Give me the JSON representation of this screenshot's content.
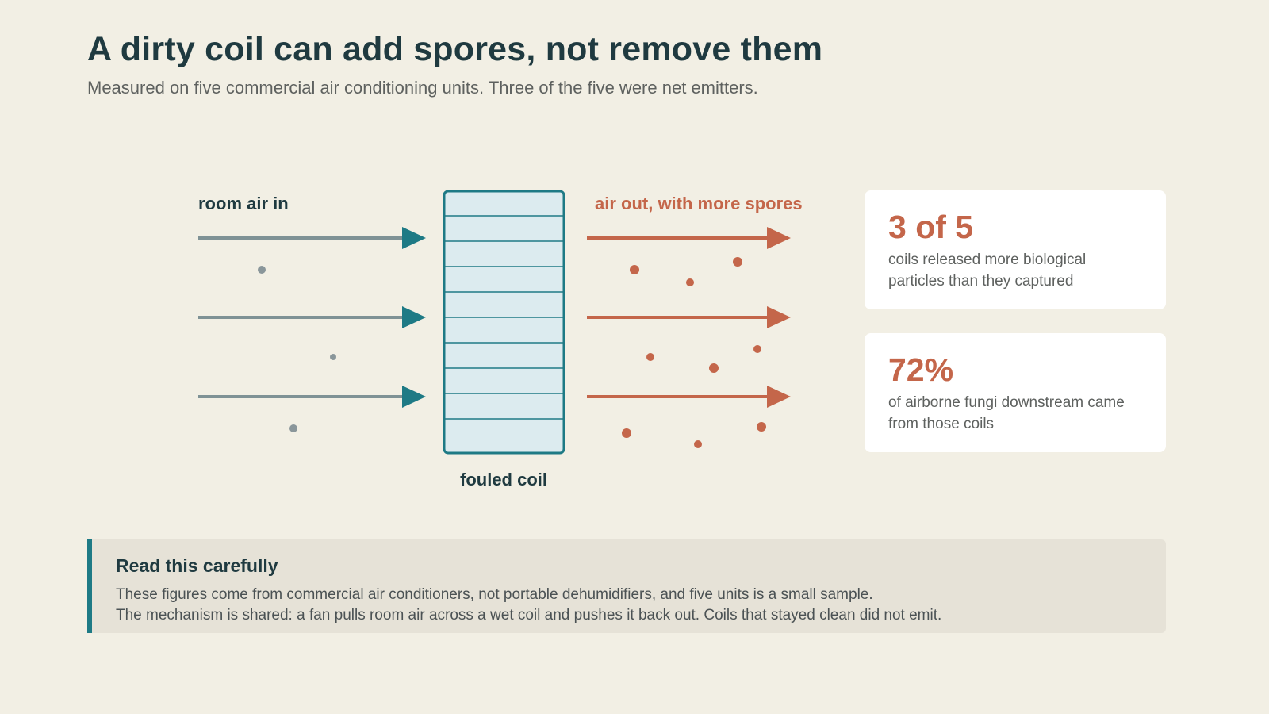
{
  "header": {
    "title": "A dirty coil can add spores, not remove them",
    "subtitle": "Measured on five commercial air conditioning units. Three of the five were net emitters."
  },
  "diagram": {
    "label_in": "room air in",
    "label_out": "air out, with more spores",
    "label_coil": "fouled coil",
    "colors": {
      "inflow_line": "#7f9295",
      "inflow_arrowhead": "#1e7a85",
      "outflow": "#c4664a",
      "coil_border": "#1e7a85",
      "coil_fill": "#dcebef",
      "particle_in": "#8a969a"
    }
  },
  "cards": [
    {
      "stat": "3 of 5",
      "text": "coils released more biological particles than they captured"
    },
    {
      "stat": "72%",
      "text": "of airborne fungi downstream came from those coils"
    }
  ],
  "callout": {
    "title": "Read this carefully",
    "line1": "These figures come from commercial air conditioners, not portable dehumidifiers, and five units is a small sample.",
    "line2": "The mechanism is shared: a fan pulls room air across a wet coil and pushes it back out. Coils that stayed clean did not emit."
  }
}
